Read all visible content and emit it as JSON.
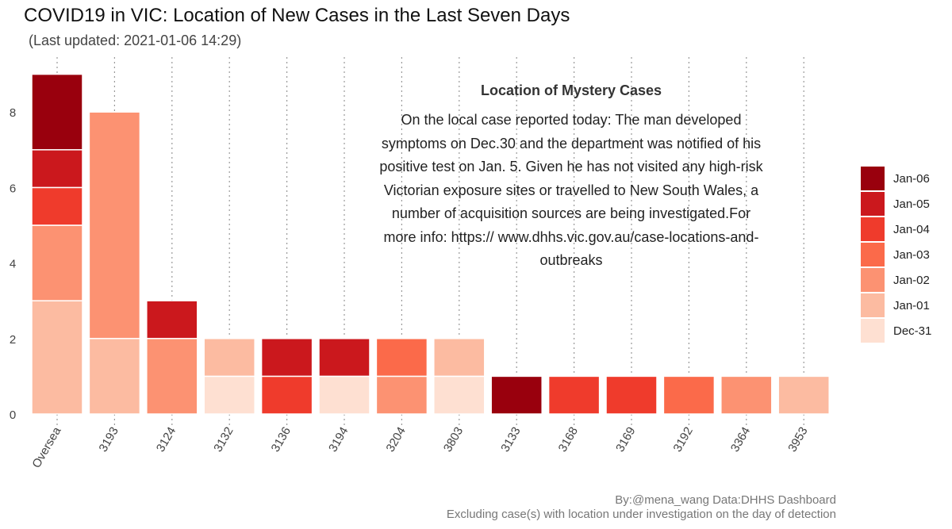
{
  "chart_data": {
    "type": "bar",
    "stacked": true,
    "title": "COVID19 in VIC: Location of New Cases in the Last Seven Days",
    "subtitle": "(Last updated: 2021-01-06 14:29)",
    "categories": [
      "Oversea",
      "3193",
      "3124",
      "3132",
      "3136",
      "3194",
      "3204",
      "3803",
      "3133",
      "3168",
      "3169",
      "3192",
      "3364",
      "3953"
    ],
    "series": [
      {
        "name": "Dec-31",
        "color": "#fee0d2",
        "values": [
          0,
          0,
          0,
          1,
          0,
          1,
          0,
          1,
          0,
          0,
          0,
          0,
          0,
          0
        ]
      },
      {
        "name": "Jan-01",
        "color": "#fcbba1",
        "values": [
          3,
          2,
          0,
          1,
          0,
          0,
          0,
          1,
          0,
          0,
          0,
          0,
          0,
          1
        ]
      },
      {
        "name": "Jan-02",
        "color": "#fc9272",
        "values": [
          2,
          6,
          2,
          0,
          0,
          0,
          1,
          0,
          0,
          0,
          0,
          0,
          1,
          0
        ]
      },
      {
        "name": "Jan-03",
        "color": "#fb6a4a",
        "values": [
          0,
          0,
          0,
          0,
          0,
          0,
          1,
          0,
          0,
          0,
          0,
          1,
          0,
          0
        ]
      },
      {
        "name": "Jan-04",
        "color": "#ef3b2c",
        "values": [
          1,
          0,
          0,
          0,
          1,
          0,
          0,
          0,
          0,
          1,
          1,
          0,
          0,
          0
        ]
      },
      {
        "name": "Jan-05",
        "color": "#cb181d",
        "values": [
          1,
          0,
          1,
          0,
          1,
          1,
          0,
          0,
          0,
          0,
          0,
          0,
          0,
          0
        ]
      },
      {
        "name": "Jan-06",
        "color": "#99000d",
        "values": [
          2,
          0,
          0,
          0,
          0,
          0,
          0,
          0,
          1,
          0,
          0,
          0,
          0,
          0
        ]
      }
    ],
    "yticks": [
      0,
      2,
      4,
      6,
      8
    ],
    "ylim": [
      0,
      9.4
    ],
    "xlabel": "",
    "ylabel": "",
    "grid": "vertical dotted",
    "legend_position": "right"
  },
  "annotation": {
    "title": "Location of Mystery Cases",
    "body": "On the local case reported today: The man developed symptoms on Dec.30 and the department was notified of his positive test on Jan. 5. Given he has not visited any high-risk Victorian exposure sites or travelled to New South Wales, a number of acquisition sources are being investigated.For more info: https:// www.dhhs.vic.gov.au/case-locations-and-outbreaks"
  },
  "caption": {
    "line1": "By:@mena_wang  Data:DHHS Dashboard",
    "line2": "Excluding case(s) with location under investigation on the day of detection"
  }
}
